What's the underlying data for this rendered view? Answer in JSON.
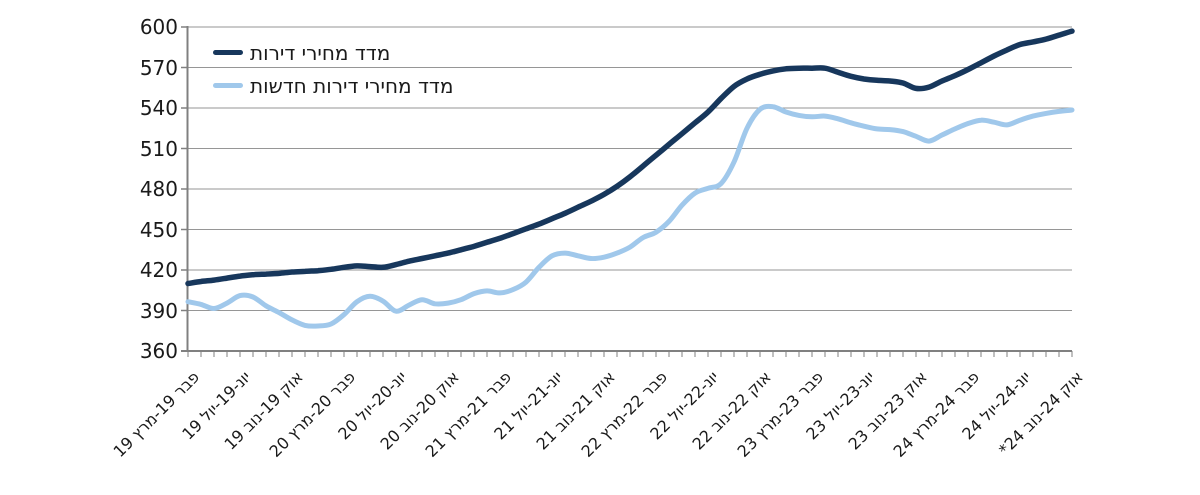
{
  "colors": {
    "background": "#FFFFFF",
    "gridline": "#969696",
    "axis": "#808080",
    "tick_text": "#1A1A1A",
    "series_dark": "#17375C",
    "series_light": "#A0C8EB"
  },
  "chart_data": {
    "type": "line",
    "title": "",
    "grid": true,
    "legend_position": "inside-top-left",
    "y_axis": {
      "min": 360,
      "max": 600,
      "step": 30,
      "tick_labels": [
        "600",
        "570",
        "540",
        "510",
        "480",
        "450",
        "420",
        "390",
        "360"
      ]
    },
    "x_axis": {
      "points_count": 69,
      "label_every_n_points": 4,
      "labels": [
        "פבר 19-מרץ 19",
        "יונ-19-יול 19",
        "אוק 19-נוב 19",
        "פבר 20-מרץ 20",
        "יונ-20-יול 20",
        "אוק 20-נוב 20",
        "פבר 21-מרץ 21",
        "יונ-21-יול 21",
        "אוק 21-נוב 21",
        "פבר 22-מרץ 22",
        "יונ-22-יול 22",
        "אוק 22-נוב 22",
        "פבר 23-מרץ 23",
        "יונ-23-יול 23",
        "אוק 23-נוב 23",
        "פבר 24-מרץ 24",
        "יונ-24-יול 24",
        "אוק 24-נוב 24*"
      ]
    },
    "series": [
      {
        "name": "מדד מחירי דירות",
        "color": "#17375C",
        "values": [
          410,
          411.5,
          412.5,
          414,
          415.5,
          416.5,
          417,
          417.5,
          418.5,
          419,
          419.5,
          420.5,
          422,
          423,
          422.5,
          422,
          424,
          426.5,
          428.5,
          430.5,
          432.5,
          435,
          437.5,
          440.5,
          443.5,
          447,
          450.5,
          454,
          458,
          462,
          466.5,
          471,
          476,
          482,
          489,
          497,
          505,
          513,
          521,
          529,
          537,
          547,
          556,
          561.5,
          565,
          567.5,
          569,
          569.5,
          569.5,
          569.5,
          566.5,
          563.5,
          561.5,
          560.5,
          560,
          558.5,
          554.5,
          555.5,
          560,
          564,
          568.5,
          573.5,
          578.5,
          583,
          587,
          589,
          591,
          594,
          597
        ]
      },
      {
        "name": "מדד מחירי דירות חדשות",
        "color": "#A0C8EB",
        "values": [
          396.5,
          394.5,
          391.5,
          395.5,
          401,
          400,
          393.5,
          388.5,
          383,
          379,
          378.5,
          380,
          387,
          396.5,
          400.5,
          397,
          389.5,
          394,
          398,
          395,
          395.5,
          398,
          402.5,
          404.5,
          403,
          405.5,
          411,
          422,
          430.5,
          432.5,
          430.5,
          428.5,
          429.5,
          432.5,
          437,
          444,
          448,
          456,
          468,
          477,
          480.5,
          484,
          500,
          525,
          539,
          541,
          537,
          534.5,
          533.5,
          534,
          532,
          529,
          526.5,
          524.5,
          524,
          522.5,
          519,
          515.5,
          520,
          524.5,
          528.5,
          531,
          529.5,
          527.5,
          531,
          534,
          536,
          537.5,
          538.5
        ]
      }
    ]
  }
}
